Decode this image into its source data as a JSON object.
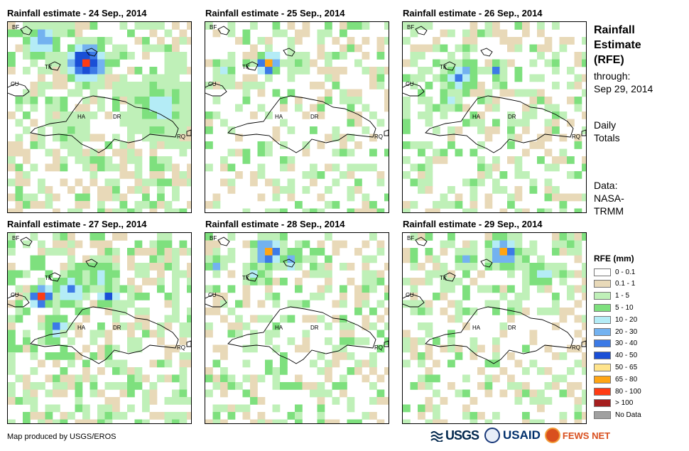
{
  "panels": [
    {
      "title": "Rainfall estimate - 24 Sep., 2014",
      "place_labels": [
        "BF",
        "TK",
        "CU",
        "HA",
        "DR",
        "RQ"
      ]
    },
    {
      "title": "Rainfall estimate - 25 Sep., 2014",
      "place_labels": [
        "BF",
        "TK",
        "CU",
        "HA",
        "DR",
        "RQ"
      ]
    },
    {
      "title": "Rainfall estimate - 26 Sep., 2014",
      "place_labels": [
        "BF",
        "TK",
        "CU",
        "HA",
        "DR",
        "RQ"
      ]
    },
    {
      "title": "Rainfall estimate - 27 Sep., 2014",
      "place_labels": [
        "BF",
        "TK",
        "CU",
        "HA",
        "DR",
        "RQ"
      ]
    },
    {
      "title": "Rainfall estimate - 28 Sep., 2014",
      "place_labels": [
        "BF",
        "TK",
        "CU",
        "HA",
        "DR",
        "RQ"
      ]
    },
    {
      "title": "Rainfall estimate - 29 Sep., 2014",
      "place_labels": [
        "BF",
        "TK",
        "CU",
        "HA",
        "DR",
        "RQ"
      ]
    }
  ],
  "sidebar": {
    "title_line1": "Rainfall",
    "title_line2": "Estimate",
    "title_line3": "(RFE)",
    "through_label": "through:",
    "through_date": "Sep 29, 2014",
    "totals_line1": "Daily",
    "totals_line2": "Totals",
    "data_line1": "Data:",
    "data_line2": "NASA-",
    "data_line3": "TRMM"
  },
  "legend": {
    "title": "RFE (mm)",
    "items": [
      {
        "label": "0 - 0.1",
        "color": "#ffffff"
      },
      {
        "label": "0.1 - 1",
        "color": "#e8d9b8"
      },
      {
        "label": "1 - 5",
        "color": "#bff0b8"
      },
      {
        "label": "5 - 10",
        "color": "#7ee07e"
      },
      {
        "label": "10 - 20",
        "color": "#b4ecf6"
      },
      {
        "label": "20 - 30",
        "color": "#73b2f0"
      },
      {
        "label": "30 - 40",
        "color": "#3c7ae6"
      },
      {
        "label": "40 - 50",
        "color": "#1a4fd6"
      },
      {
        "label": "50 - 65",
        "color": "#ffe48c"
      },
      {
        "label": "65 - 80",
        "color": "#ffa514"
      },
      {
        "label": "80 - 100",
        "color": "#ff3c14"
      },
      {
        "label": "> 100",
        "color": "#a51e1e"
      },
      {
        "label": "No Data",
        "color": "#a0a0a0"
      }
    ]
  },
  "footer": {
    "credit": "Map produced by USGS/EROS",
    "logos": [
      "USGS",
      "USAID",
      "FEWS NET"
    ]
  }
}
